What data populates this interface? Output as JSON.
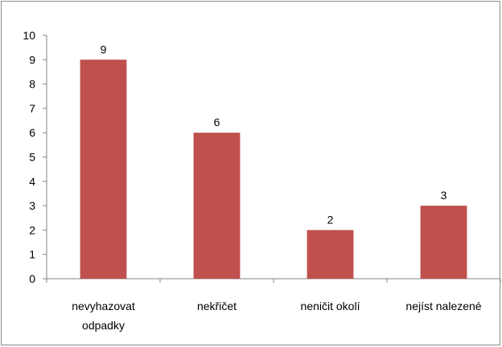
{
  "chart_data": {
    "type": "bar",
    "categories": [
      [
        "nevyhazovat",
        "odpadky"
      ],
      [
        "nekřičet"
      ],
      [
        "neničit okolí"
      ],
      [
        "nejíst nalezené"
      ]
    ],
    "values": [
      9,
      6,
      2,
      3
    ],
    "data_labels": [
      "9",
      "6",
      "2",
      "3"
    ],
    "y_ticks": [
      "0",
      "1",
      "2",
      "3",
      "4",
      "5",
      "6",
      "7",
      "8",
      "9",
      "10"
    ],
    "ylim": [
      0,
      10
    ],
    "title": "",
    "xlabel": "",
    "ylabel": "",
    "grid": false,
    "legend": "none",
    "bar_color": "#c0504d",
    "axis_color": "#868686"
  }
}
